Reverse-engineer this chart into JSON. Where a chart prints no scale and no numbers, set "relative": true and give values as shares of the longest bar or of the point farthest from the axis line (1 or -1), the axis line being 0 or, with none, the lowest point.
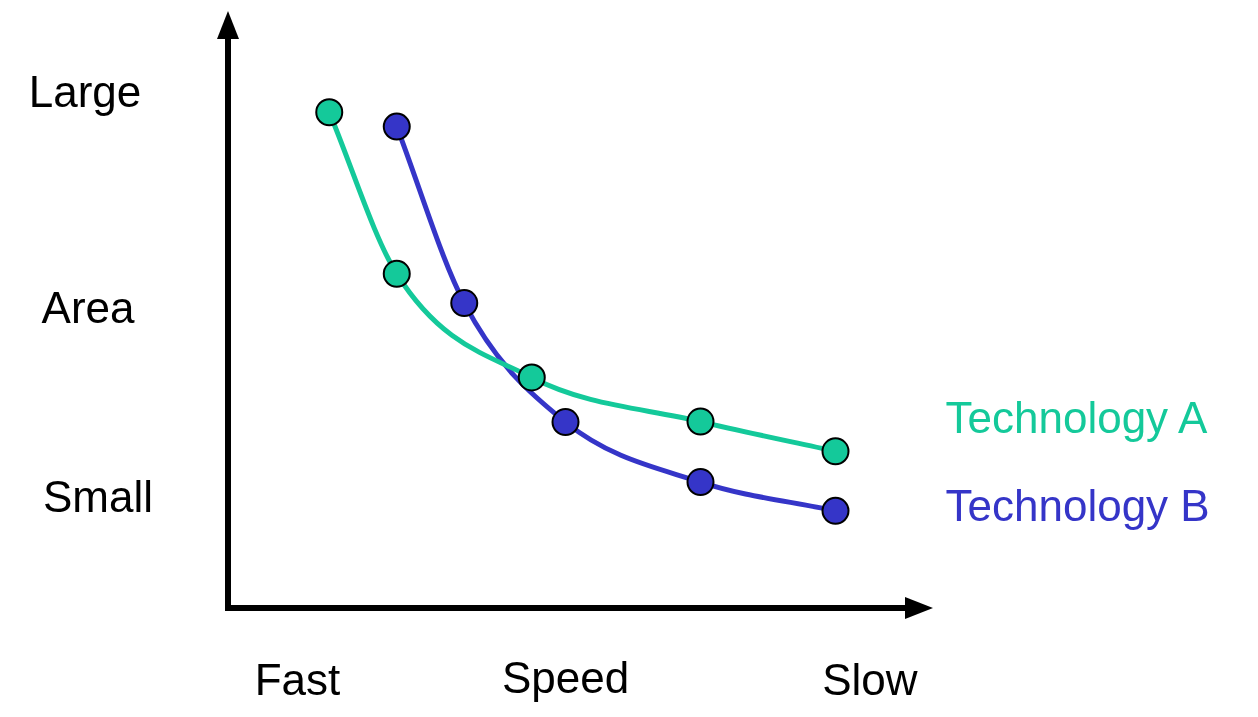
{
  "chart_data": {
    "type": "line",
    "relative": true,
    "xlabel": "Speed",
    "ylabel": "Area",
    "annotations": [
      "Large",
      "Small",
      "Fast",
      "Slow"
    ],
    "categories": [
      null,
      null,
      null,
      null,
      null,
      null,
      null,
      null,
      null,
      null,
      null,
      null,
      null,
      null,
      null,
      null,
      null,
      null,
      null,
      null,
      null
    ],
    "legend": "right",
    "marker": "circle",
    "line_style": "solid",
    "series": [
      {
        "name": "Technology A",
        "color": "#14c99a",
        "values": [
          null,
          null,
          null,
          1,
          null,
          0.674,
          null,
          null,
          null,
          0.465,
          null,
          null,
          null,
          null,
          0.376,
          null,
          null,
          null,
          0.316,
          null,
          null
        ]
      },
      {
        "name": "Technology B",
        "color": "#3535c8",
        "values": [
          null,
          null,
          null,
          null,
          null,
          0.971,
          null,
          0.615,
          null,
          null,
          0.375,
          null,
          null,
          null,
          0.254,
          null,
          null,
          null,
          0.196,
          null,
          null
        ]
      }
    ]
  }
}
